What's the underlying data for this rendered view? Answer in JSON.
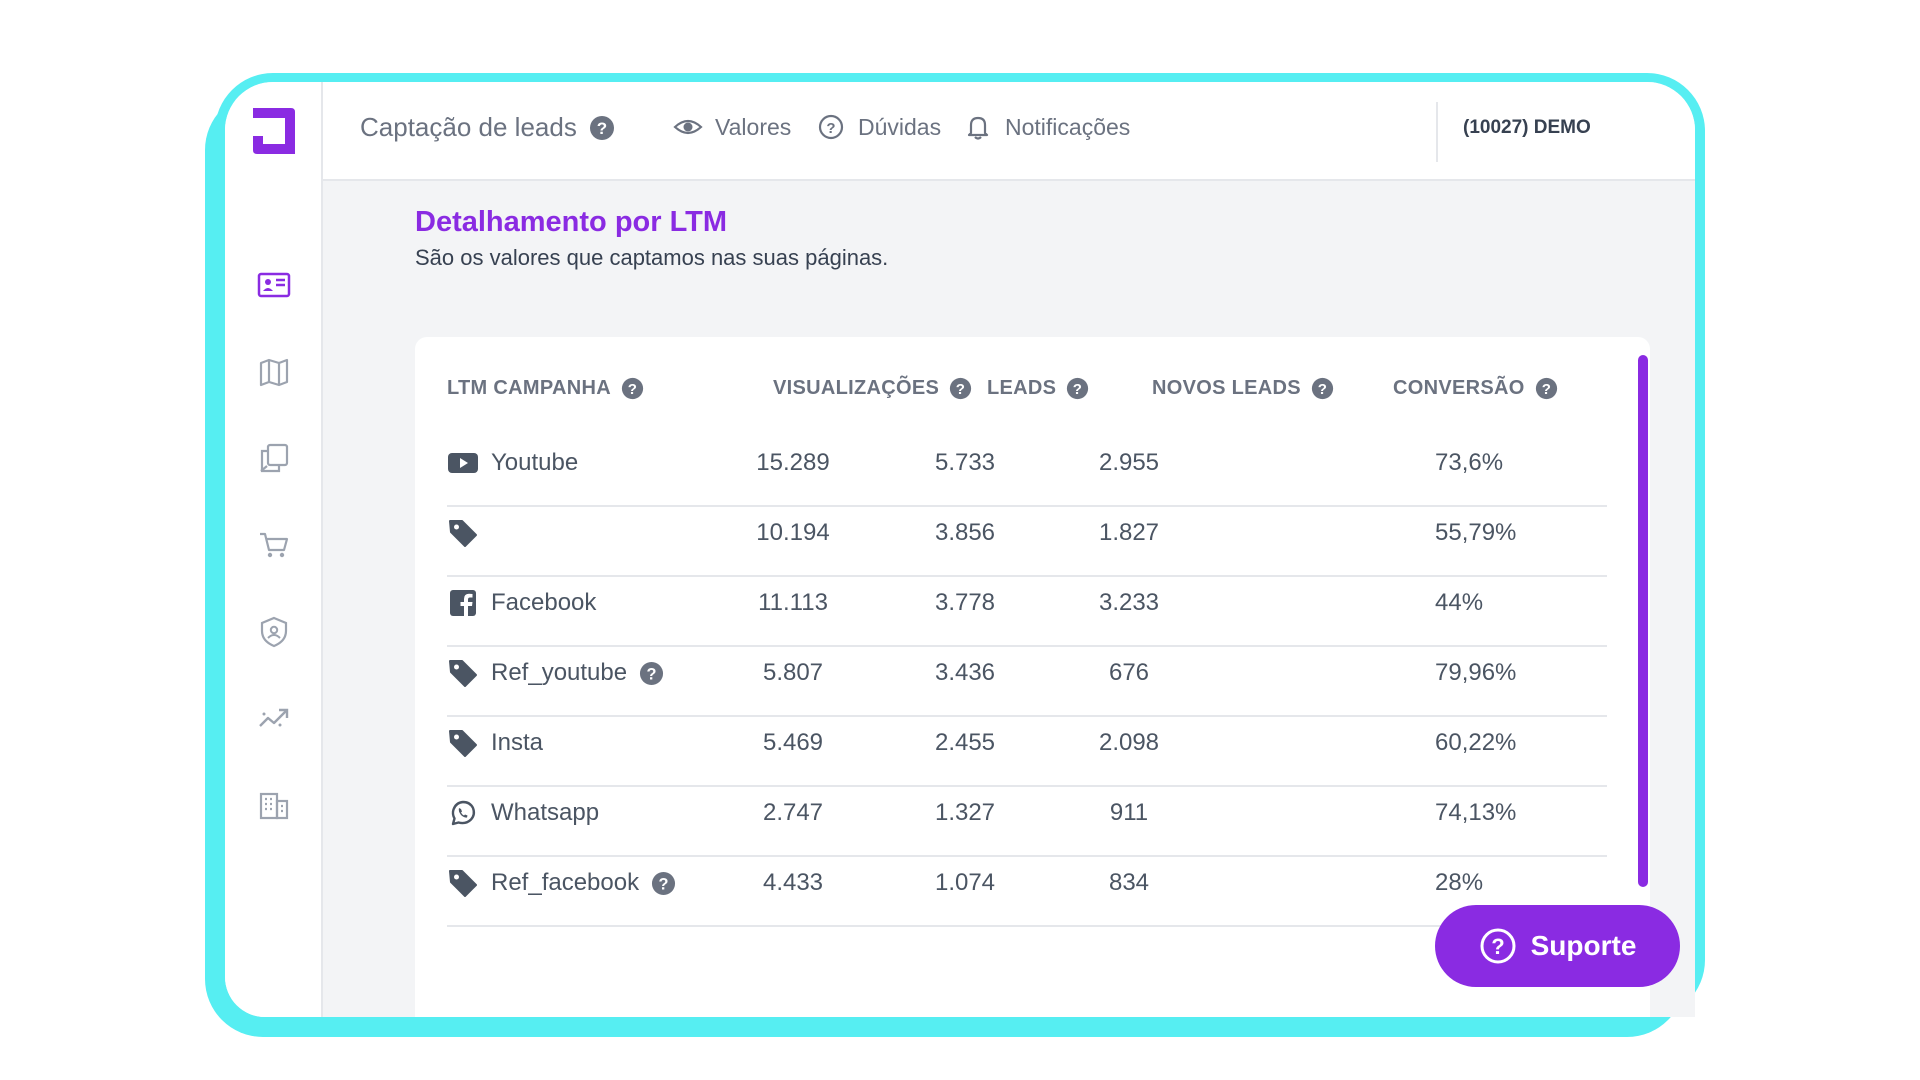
{
  "app": {
    "page_title": "Captação de leads",
    "nav": [
      {
        "label": "Valores",
        "icon": "eye-icon"
      },
      {
        "label": "Dúvidas",
        "icon": "question-circle-icon"
      },
      {
        "label": "Notificações",
        "icon": "bell-icon"
      }
    ],
    "account": "(10027) DEMO"
  },
  "sidebar": {
    "items": [
      {
        "name": "leads-card",
        "icon": "id-card-icon",
        "active": true
      },
      {
        "name": "map",
        "icon": "map-icon",
        "active": false
      },
      {
        "name": "pages",
        "icon": "pages-icon",
        "active": false
      },
      {
        "name": "cart",
        "icon": "cart-icon",
        "active": false
      },
      {
        "name": "security",
        "icon": "shield-user-icon",
        "active": false
      },
      {
        "name": "analytics",
        "icon": "trend-icon",
        "active": false
      },
      {
        "name": "company",
        "icon": "building-icon",
        "active": false
      }
    ]
  },
  "section": {
    "title": "Detalhamento por LTM",
    "subtitle": "São os valores que captamos nas suas páginas."
  },
  "table": {
    "columns": [
      "LTM CAMPANHA",
      "VISUALIZAÇÕES",
      "LEADS",
      "NOVOS LEADS",
      "CONVERSÃO"
    ],
    "rows": [
      {
        "icon": "youtube-icon",
        "name": "Youtube",
        "help": false,
        "views": "15.289",
        "leads": "5.733",
        "new_leads": "2.955",
        "conversion": "73,6%"
      },
      {
        "icon": "tag-icon",
        "name": "",
        "help": false,
        "views": "10.194",
        "leads": "3.856",
        "new_leads": "1.827",
        "conversion": "55,79%"
      },
      {
        "icon": "facebook-icon",
        "name": "Facebook",
        "help": false,
        "views": "11.113",
        "leads": "3.778",
        "new_leads": "3.233",
        "conversion": "44%"
      },
      {
        "icon": "tag-icon",
        "name": "Ref_youtube",
        "help": true,
        "views": "5.807",
        "leads": "3.436",
        "new_leads": "676",
        "conversion": "79,96%"
      },
      {
        "icon": "tag-icon",
        "name": "Insta",
        "help": false,
        "views": "5.469",
        "leads": "2.455",
        "new_leads": "2.098",
        "conversion": "60,22%"
      },
      {
        "icon": "whatsapp-icon",
        "name": "Whatsapp",
        "help": false,
        "views": "2.747",
        "leads": "1.327",
        "new_leads": "911",
        "conversion": "74,13%"
      },
      {
        "icon": "tag-icon",
        "name": "Ref_facebook",
        "help": true,
        "views": "4.433",
        "leads": "1.074",
        "new_leads": "834",
        "conversion": "28%"
      }
    ]
  },
  "support": {
    "label": "Suporte"
  },
  "colors": {
    "accent": "#8a2be2",
    "frame": "#56eef2",
    "text": "#4b5563"
  }
}
